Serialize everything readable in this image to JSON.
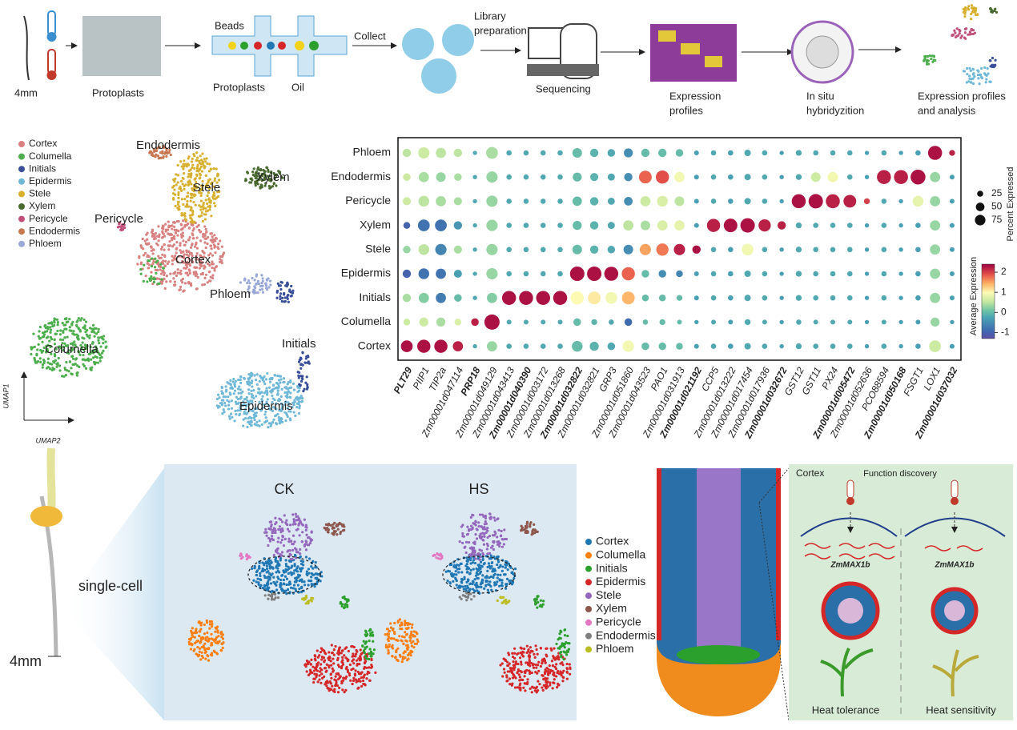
{
  "workflow": {
    "root_length": "4mm",
    "protoplasts": "Protoplasts",
    "beads": "Beads",
    "droplet_protoplasts": "Protoplasts",
    "oil": "Oil",
    "collect": "Collect",
    "library": [
      "Library",
      "preparation"
    ],
    "sequencing": "Sequencing",
    "expression": [
      "Expression",
      "profiles"
    ],
    "in_situ": [
      "In situ",
      "hybridyzition"
    ],
    "analysis": [
      "Expression profiles",
      "and analysis"
    ]
  },
  "umap": {
    "legend": [
      {
        "name": "Cortex",
        "color": "#d98080"
      },
      {
        "name": "Columella",
        "color": "#4cae4c"
      },
      {
        "name": "Initials",
        "color": "#3a4f9a"
      },
      {
        "name": "Epidermis",
        "color": "#6fb8d8"
      },
      {
        "name": "Stele",
        "color": "#d8b030"
      },
      {
        "name": "Xylem",
        "color": "#4a6a30"
      },
      {
        "name": "Pericycle",
        "color": "#c0507a"
      },
      {
        "name": "Endodermis",
        "color": "#c87850"
      },
      {
        "name": "Phloem",
        "color": "#9aa8d8"
      }
    ],
    "labels": [
      "Endodermis",
      "Stele",
      "Xylem",
      "Pericycle",
      "Cortex",
      "Phloem",
      "Columella",
      "Initials",
      "Epidermis"
    ],
    "axis_y": "UMAP1",
    "axis_x": "UMAP2"
  },
  "chart_data": {
    "type": "dot",
    "categories": [
      "PLT29",
      "PIIP1",
      "TIP2a",
      "Zm00001d047114",
      "PRP18",
      "Zm00001d049129",
      "Zm00001d043413",
      "Zm00001d040390",
      "Zm00001d003172",
      "Zm00001d013268",
      "Zm00001d032822",
      "Zm00001d032821",
      "GRP3",
      "Zm00001d051860",
      "Zm00001d043523",
      "PAO1",
      "Zm00001d031913",
      "Zm00001d021192",
      "CCP5",
      "Zm00001d013222",
      "Zm00001d017454",
      "Zm00001d017936",
      "Zm00001d032672",
      "GST12",
      "GST11",
      "PX24",
      "Zm00001d005472",
      "Zm00001d052636",
      "PCO88594",
      "Zm00001d050168",
      "FSGT1",
      "LOX1",
      "Zm00001d037032"
    ],
    "bold": [
      true,
      false,
      false,
      false,
      true,
      false,
      false,
      true,
      false,
      false,
      true,
      false,
      false,
      false,
      false,
      false,
      false,
      true,
      false,
      false,
      false,
      false,
      true,
      false,
      false,
      false,
      true,
      false,
      false,
      true,
      false,
      false,
      true
    ],
    "rows": [
      "Phloem",
      "Endodermis",
      "Pericycle",
      "Xylem",
      "Stele",
      "Epidermis",
      "Initials",
      "Columella",
      "Cortex"
    ],
    "values": [
      [
        0.5,
        0.6,
        0.5,
        0.5,
        -0.2,
        0.4,
        -0.2,
        -0.2,
        -0.2,
        -0.2,
        0,
        -0.1,
        -0.2,
        -0.5,
        0,
        0,
        0,
        -0.3,
        -0.2,
        -0.3,
        -0.2,
        -0.2,
        -0.3,
        -0.2,
        -0.2,
        -0.2,
        -0.2,
        -0.3,
        -0.2,
        -0.3,
        -0.3,
        2.3,
        2.2
      ],
      [
        0.6,
        0.4,
        0.3,
        0.4,
        -0.2,
        0.3,
        -0.2,
        -0.2,
        -0.2,
        -0.2,
        0,
        -0.1,
        -0.2,
        -0.5,
        1.8,
        1.9,
        0.9,
        -0.3,
        -0.2,
        -0.3,
        -0.2,
        -0.2,
        -0.3,
        -0.2,
        0.6,
        0.9,
        -0.2,
        -0.3,
        2.2,
        2.2,
        2.3,
        0.3,
        -0.3
      ],
      [
        0.6,
        0.5,
        0.4,
        0.4,
        -0.2,
        0.3,
        -0.2,
        -0.2,
        -0.2,
        -0.2,
        0,
        -0.1,
        -0.2,
        -0.5,
        0.6,
        0.7,
        0.5,
        -0.3,
        -0.2,
        -0.3,
        -0.2,
        -0.2,
        -0.3,
        2.3,
        2.3,
        2.2,
        2.2,
        2.0,
        -0.2,
        -0.3,
        0.8,
        0.3,
        -0.3
      ],
      [
        -1,
        -0.8,
        -0.8,
        -0.4,
        -0.2,
        0.3,
        -0.2,
        -0.2,
        -0.2,
        -0.2,
        0,
        -0.1,
        -0.2,
        0.5,
        0.4,
        0.7,
        0.8,
        -0.3,
        2.2,
        2.3,
        2.3,
        2.2,
        2.2,
        -0.2,
        -0.2,
        -0.2,
        -0.2,
        -0.3,
        -0.2,
        -0.3,
        -0.3,
        0.3,
        -0.3
      ],
      [
        0.3,
        0.5,
        -0.6,
        0.4,
        -0.2,
        0.3,
        -0.2,
        -0.2,
        -0.2,
        -0.2,
        0,
        -0.1,
        -0.2,
        -0.5,
        1.5,
        1.7,
        2.2,
        2.3,
        -0.2,
        -0.3,
        0.9,
        -0.2,
        -0.3,
        -0.2,
        -0.2,
        -0.2,
        -0.2,
        -0.3,
        -0.2,
        -0.3,
        -0.3,
        0.3,
        -0.3
      ],
      [
        -1,
        -0.8,
        -0.8,
        -0.3,
        -0.2,
        0.3,
        -0.2,
        -0.2,
        -0.2,
        -0.2,
        2.3,
        2.3,
        2.3,
        1.8,
        0,
        -0.5,
        -0.6,
        -0.3,
        -0.2,
        -0.3,
        -0.2,
        -0.2,
        -0.3,
        -0.2,
        -0.2,
        -0.2,
        -0.2,
        -0.3,
        -0.2,
        -0.3,
        -0.3,
        0.3,
        -0.3
      ],
      [
        0.4,
        0.2,
        -0.7,
        0,
        -0.2,
        0.2,
        2.3,
        2.3,
        2.3,
        2.3,
        1.0,
        1.1,
        0.9,
        1.4,
        0,
        0,
        0,
        -0.3,
        -0.2,
        -0.3,
        -0.2,
        -0.2,
        -0.3,
        -0.2,
        -0.2,
        -0.2,
        -0.2,
        -0.3,
        -0.2,
        -0.3,
        -0.3,
        0.3,
        -0.3
      ],
      [
        0.6,
        0.6,
        0.4,
        0.7,
        2.2,
        2.3,
        -0.2,
        -0.2,
        -0.2,
        -0.2,
        0,
        -0.1,
        -0.2,
        -0.9,
        0,
        0,
        0,
        -0.3,
        -0.2,
        -0.3,
        -0.2,
        -0.2,
        -0.3,
        -0.2,
        -0.2,
        -0.2,
        -0.2,
        -0.3,
        -0.2,
        -0.3,
        -0.3,
        0.3,
        -0.3
      ],
      [
        2.3,
        2.3,
        2.3,
        2.2,
        -0.2,
        0.3,
        -0.2,
        -0.2,
        -0.2,
        -0.2,
        0,
        -0.1,
        -0.2,
        0.9,
        0,
        0,
        0,
        -0.3,
        -0.2,
        -0.3,
        -0.2,
        -0.2,
        -0.3,
        -0.2,
        -0.2,
        -0.2,
        -0.2,
        -0.3,
        -0.2,
        -0.3,
        -0.3,
        0.6,
        -0.3
      ]
    ],
    "sizes": [
      [
        30,
        55,
        45,
        30,
        8,
        60,
        12,
        12,
        12,
        12,
        40,
        30,
        25,
        35,
        30,
        30,
        25,
        10,
        12,
        12,
        18,
        12,
        8,
        15,
        12,
        12,
        12,
        8,
        12,
        8,
        12,
        85,
        15
      ],
      [
        25,
        45,
        40,
        25,
        8,
        55,
        12,
        12,
        12,
        12,
        35,
        28,
        22,
        30,
        70,
        75,
        45,
        10,
        12,
        12,
        18,
        12,
        8,
        15,
        40,
        45,
        12,
        8,
        85,
        85,
        95,
        45,
        10
      ],
      [
        28,
        50,
        45,
        28,
        8,
        55,
        12,
        12,
        12,
        12,
        38,
        30,
        22,
        32,
        45,
        50,
        40,
        10,
        12,
        12,
        18,
        12,
        8,
        85,
        90,
        85,
        70,
        15,
        12,
        8,
        50,
        45,
        10
      ],
      [
        20,
        60,
        60,
        30,
        8,
        55,
        12,
        12,
        12,
        12,
        35,
        30,
        22,
        45,
        40,
        45,
        45,
        10,
        75,
        80,
        90,
        65,
        30,
        15,
        12,
        12,
        12,
        8,
        12,
        8,
        12,
        45,
        10
      ],
      [
        25,
        50,
        55,
        28,
        8,
        55,
        12,
        12,
        12,
        12,
        40,
        30,
        25,
        40,
        55,
        65,
        55,
        30,
        12,
        12,
        60,
        12,
        8,
        15,
        12,
        12,
        12,
        8,
        12,
        8,
        12,
        45,
        10
      ],
      [
        30,
        50,
        45,
        28,
        8,
        55,
        12,
        12,
        12,
        12,
        90,
        90,
        85,
        75,
        25,
        25,
        20,
        10,
        12,
        12,
        18,
        12,
        8,
        15,
        12,
        12,
        12,
        8,
        12,
        8,
        12,
        45,
        10
      ],
      [
        30,
        45,
        45,
        25,
        8,
        45,
        85,
        85,
        85,
        85,
        75,
        70,
        60,
        70,
        20,
        20,
        15,
        10,
        12,
        12,
        18,
        12,
        8,
        15,
        12,
        12,
        12,
        8,
        12,
        8,
        12,
        45,
        10
      ],
      [
        20,
        35,
        35,
        20,
        25,
        100,
        10,
        10,
        10,
        10,
        25,
        15,
        12,
        25,
        12,
        15,
        10,
        8,
        10,
        10,
        15,
        10,
        8,
        12,
        10,
        10,
        10,
        8,
        10,
        8,
        10,
        35,
        8
      ],
      [
        60,
        75,
        75,
        45,
        8,
        45,
        12,
        12,
        12,
        12,
        50,
        35,
        25,
        55,
        25,
        25,
        20,
        10,
        12,
        12,
        18,
        12,
        8,
        15,
        12,
        12,
        12,
        8,
        12,
        8,
        12,
        60,
        10
      ]
    ],
    "size_legend": {
      "title": "Percent Expressed",
      "values": [
        25,
        50,
        75
      ]
    },
    "color_legend": {
      "title": "Average Expression",
      "lim": [
        -1.3,
        2.4
      ],
      "ticks": [
        -1,
        0,
        1,
        2
      ]
    }
  },
  "bottom": {
    "seedling_label": "single-cell",
    "length": "4mm",
    "conditions": [
      "CK",
      "HS"
    ],
    "legend": [
      {
        "name": "Cortex",
        "color": "#1f77b4"
      },
      {
        "name": "Columella",
        "color": "#ff7f0e"
      },
      {
        "name": "Initials",
        "color": "#2ca02c"
      },
      {
        "name": "Epidermis",
        "color": "#d62728"
      },
      {
        "name": "Stele",
        "color": "#9467bd"
      },
      {
        "name": "Xylem",
        "color": "#8c564b"
      },
      {
        "name": "Pericycle",
        "color": "#e377c2"
      },
      {
        "name": "Endodermis",
        "color": "#7f7f7f"
      },
      {
        "name": "Phloem",
        "color": "#bcbd22"
      }
    ],
    "panel_title": "Cortex",
    "function": "Function discovery",
    "gene": [
      "ZmMAX1b",
      "ZmMAX1b"
    ],
    "outcomes": [
      "Heat tolerance",
      "Heat sensitivity"
    ]
  }
}
